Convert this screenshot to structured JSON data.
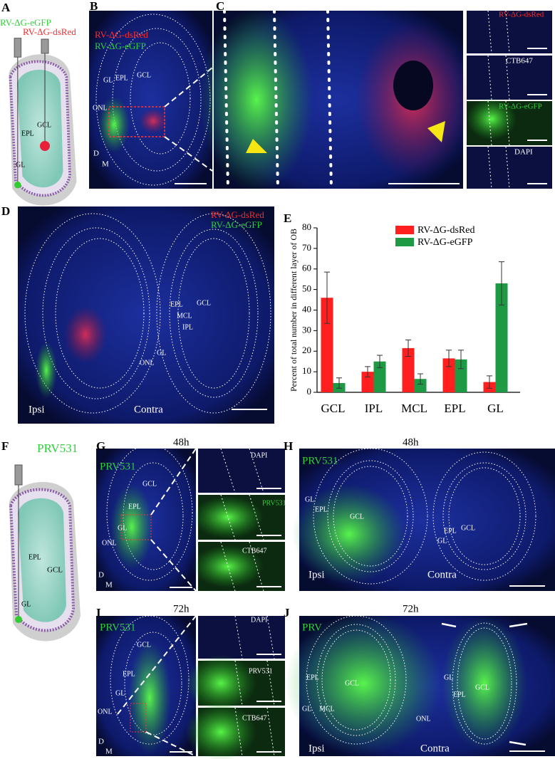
{
  "panels": {
    "a": {
      "label": "A",
      "texts": [
        "RV-ΔG-eGFP",
        "RV-ΔG-dsRed",
        "EPL",
        "GCL",
        "GL"
      ]
    },
    "b": {
      "label": "B",
      "texts": [
        "RV-ΔG-dsRed",
        "RV-ΔG-eGFP",
        "GL",
        "EPL",
        "GCL",
        "ONL",
        "D",
        "M"
      ]
    },
    "c": {
      "label": "C",
      "texts": [
        "RV-ΔG-dsRed",
        "CTB647",
        "RV-ΔG-eGFP",
        "DAPI"
      ]
    },
    "d": {
      "label": "D",
      "texts": [
        "RV-ΔG-dsRed",
        "RV-ΔG-eGFP",
        "EPL",
        "GCL",
        "MCL",
        "IPL",
        "GL",
        "ONL",
        "Ipsi",
        "Contra"
      ]
    },
    "e": {
      "label": "E"
    },
    "f": {
      "label": "F",
      "texts": [
        "PRV531",
        "EPL",
        "GCL",
        "GL"
      ]
    },
    "g": {
      "label": "G",
      "texts": [
        "48h",
        "PRV531",
        "GCL",
        "EPL",
        "GL",
        "ONL",
        "D",
        "M",
        "DAPI",
        "PRV531",
        "CTB647"
      ]
    },
    "h": {
      "label": "H",
      "texts": [
        "48h",
        "PRV531",
        "GL",
        "EPL",
        "GCL",
        "Ipsi",
        "Contra",
        "EPL",
        "GCL",
        "GL"
      ]
    },
    "i": {
      "label": "I",
      "texts": [
        "72h",
        "PRV531",
        "GCL",
        "EPL",
        "GL",
        "ONL",
        "D",
        "M",
        "DAPI",
        "PRV531",
        "CTB647"
      ]
    },
    "j": {
      "label": "J",
      "texts": [
        "72h",
        "PRV",
        "EPL",
        "GL",
        "MCL",
        "GCL",
        "ONL",
        "Ipsi",
        "Contra",
        "GL",
        "EPL",
        "GCL"
      ]
    }
  },
  "chart_data": {
    "type": "bar",
    "ylabel": "Percent of total number in different layer of OB",
    "categories": [
      "GCL",
      "IPL",
      "MCL",
      "EPL",
      "GL"
    ],
    "series": [
      {
        "name": "RV-ΔG-dsRed",
        "color": "#ff1f1f",
        "values": [
          46,
          10,
          21.5,
          16.5,
          5
        ],
        "errors": [
          12.5,
          2.5,
          4,
          4,
          3
        ]
      },
      {
        "name": "RV-ΔG-eGFP",
        "color": "#1e9a44",
        "values": [
          4.5,
          15,
          6.5,
          16,
          53
        ],
        "errors": [
          2.5,
          3,
          2.5,
          4.5,
          10.5
        ]
      }
    ],
    "ylim": [
      0,
      80
    ],
    "yticks": [
      0,
      10,
      20,
      30,
      40,
      50,
      60,
      70,
      80
    ]
  }
}
